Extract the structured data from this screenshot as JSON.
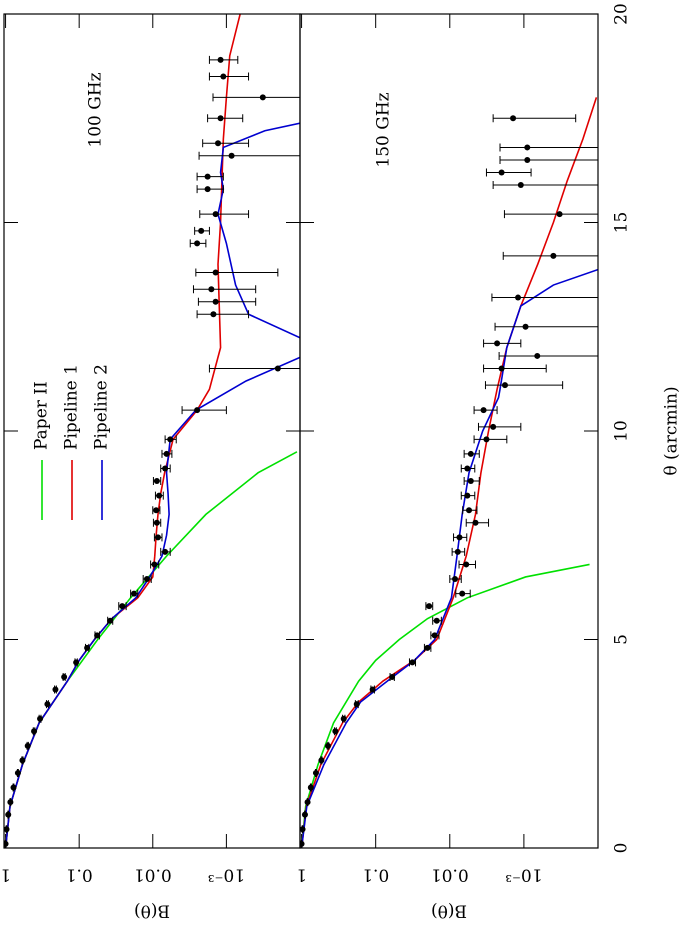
{
  "chart_data": [
    {
      "type": "line",
      "annotation": "100 GHz",
      "ylabel": "B(θ)",
      "log_y": true,
      "legend": "upper center",
      "xlim": [
        0,
        20
      ],
      "ylim": [
        0.0001,
        1.05
      ],
      "yticks": [
        1,
        0.1,
        0.01,
        {
          "value": 0.001,
          "label": "10⁻³"
        }
      ],
      "series": [
        {
          "name": "Paper II",
          "color": "#00e000",
          "x": [
            0,
            1,
            2,
            3,
            4,
            5,
            6,
            7,
            8,
            9,
            9.5
          ],
          "values": [
            1,
            0.87,
            0.59,
            0.35,
            0.145,
            0.056,
            0.02,
            0.0065,
            0.0019,
            0.00037,
            0.00011
          ]
        },
        {
          "name": "Pipeline 1",
          "color": "#e00000",
          "x": [
            0,
            1,
            2,
            3,
            4,
            4.5,
            5,
            5.5,
            6,
            6.5,
            7,
            7.5,
            8,
            8.5,
            9,
            9.8,
            10.5,
            11,
            12,
            13,
            14,
            15,
            16,
            17,
            18,
            19,
            20
          ],
          "values": [
            1,
            0.87,
            0.59,
            0.35,
            0.145,
            0.1,
            0.062,
            0.036,
            0.016,
            0.01,
            0.0094,
            0.009,
            0.0085,
            0.0078,
            0.0069,
            0.0053,
            0.0025,
            0.0017,
            0.0012,
            0.00125,
            0.0013,
            0.0012,
            0.00115,
            0.0011,
            0.001,
            0.0009,
            0.00065
          ]
        },
        {
          "name": "Pipeline 2",
          "color": "#0000d0",
          "x": [
            0,
            1,
            2,
            3,
            4,
            4.5,
            5,
            5.5,
            6,
            6.5,
            7,
            7.5,
            8,
            8.5,
            9,
            9.8,
            10.5,
            11.2,
            11.8,
            12.2,
            12.8,
            13.5,
            14.5,
            15.2,
            15.8,
            16.2,
            16.8,
            17.2,
            17.4
          ],
          "values": [
            1,
            0.87,
            0.59,
            0.35,
            0.145,
            0.1,
            0.062,
            0.036,
            0.017,
            0.011,
            0.0075,
            0.0065,
            0.006,
            0.0062,
            0.0065,
            0.0058,
            0.0026,
            0.00054,
            9e-05,
            9e-05,
            0.0005,
            0.00075,
            0.001,
            0.0013,
            0.0011,
            0.0012,
            0.0011,
            0.0003,
            9e-05
          ]
        }
      ],
      "points": {
        "x": [
          0.1,
          0.45,
          0.8,
          1.1,
          1.45,
          1.8,
          2.1,
          2.45,
          2.8,
          3.1,
          3.45,
          3.8,
          4.1,
          4.45,
          4.8,
          5.1,
          5.45,
          5.8,
          6.1,
          6.45,
          6.8,
          7.1,
          7.45,
          7.8,
          8.1,
          8.45,
          8.8,
          9.1,
          9.45,
          9.8,
          10.5,
          11.5,
          12.8,
          13.1,
          13.4,
          13.8,
          14.5,
          14.8,
          15.2,
          15.8,
          16.1,
          16.6,
          16.9,
          17.5,
          18.0,
          18.5,
          18.9
        ],
        "values": [
          1,
          0.97,
          0.92,
          0.86,
          0.78,
          0.68,
          0.59,
          0.5,
          0.41,
          0.34,
          0.27,
          0.21,
          0.16,
          0.11,
          0.078,
          0.057,
          0.038,
          0.026,
          0.018,
          0.012,
          0.0095,
          0.0068,
          0.0085,
          0.0088,
          0.009,
          0.0082,
          0.0088,
          0.0068,
          0.0065,
          0.0058,
          0.0025,
          0.0002,
          0.0015,
          0.0014,
          0.0016,
          0.0014,
          0.0025,
          0.0022,
          0.0014,
          0.0018,
          0.0018,
          0.00085,
          0.0013,
          0.0012,
          0.00032,
          0.0011,
          0.0012
        ],
        "errors": [
          0.01,
          0.01,
          0.01,
          0.01,
          0.01,
          0.01,
          0.01,
          0.01,
          0.01,
          0.01,
          0.008,
          0.006,
          0.005,
          0.004,
          0.004,
          0.004,
          0.003,
          0.003,
          0.002,
          0.0015,
          0.0012,
          0.001,
          0.001,
          0.001,
          0.001,
          0.001,
          0.001,
          0.001,
          0.001,
          0.001,
          0.0015,
          0.0015,
          0.001,
          0.001,
          0.0012,
          0.0012,
          0.0006,
          0.0005,
          0.0009,
          0.0007,
          0.0007,
          0.0015,
          0.0008,
          0.0006,
          0.0012,
          0.0006,
          0.0005
        ]
      }
    },
    {
      "type": "line",
      "annotation": "150 GHz",
      "ylabel": "B(θ)",
      "xlabel": "θ (arcmin)",
      "log_y": true,
      "xlim": [
        0,
        20
      ],
      "ylim": [
        0.0001,
        1.05
      ],
      "xticks": [
        0,
        5,
        10,
        15,
        20
      ],
      "yticks": [
        1,
        0.1,
        0.01,
        {
          "value": 0.001,
          "label": "10⁻³"
        }
      ],
      "series": [
        {
          "name": "Paper II",
          "color": "#00e000",
          "x": [
            0,
            1,
            2,
            3,
            4,
            4.5,
            5,
            5.5,
            6,
            6.5,
            6.8
          ],
          "values": [
            1,
            0.88,
            0.6,
            0.37,
            0.17,
            0.1,
            0.048,
            0.02,
            0.0058,
            0.00095,
            0.00013
          ]
        },
        {
          "name": "Pipeline 1",
          "color": "#e00000",
          "x": [
            0,
            1,
            2,
            3,
            3.5,
            4,
            4.5,
            5,
            6,
            7,
            8,
            9,
            10,
            11,
            12,
            13,
            14,
            15,
            16,
            17,
            18
          ],
          "values": [
            1,
            0.86,
            0.55,
            0.28,
            0.17,
            0.08,
            0.03,
            0.015,
            0.009,
            0.006,
            0.0045,
            0.0038,
            0.003,
            0.0023,
            0.0017,
            0.0011,
            0.00065,
            0.0004,
            0.00026,
            0.00016,
            0.000105
          ]
        },
        {
          "name": "Pipeline 2",
          "color": "#0000d0",
          "x": [
            0,
            1,
            2,
            3,
            3.5,
            4,
            4.5,
            5,
            6,
            7,
            8,
            9,
            10,
            10.8,
            11,
            12,
            13,
            13.5,
            13.9
          ],
          "values": [
            1,
            0.85,
            0.5,
            0.25,
            0.16,
            0.07,
            0.03,
            0.016,
            0.0095,
            0.008,
            0.0068,
            0.0055,
            0.0036,
            0.0022,
            0.0021,
            0.0017,
            0.0011,
            0.0004,
            9e-05
          ]
        }
      ],
      "points": {
        "x": [
          0.1,
          0.45,
          0.8,
          1.1,
          1.45,
          1.8,
          2.1,
          2.45,
          2.8,
          3.1,
          3.45,
          3.8,
          4.1,
          4.45,
          4.8,
          5.1,
          5.45,
          5.8,
          6.1,
          6.45,
          6.8,
          7.1,
          7.45,
          7.8,
          8.1,
          8.45,
          8.8,
          9.1,
          9.45,
          9.8,
          10.1,
          10.5,
          11.1,
          11.5,
          11.8,
          12.1,
          12.5,
          13.2,
          14.2,
          15.2,
          15.9,
          16.2,
          16.5,
          16.8,
          17.5
        ],
        "values": [
          1,
          0.97,
          0.9,
          0.83,
          0.75,
          0.64,
          0.54,
          0.44,
          0.35,
          0.27,
          0.18,
          0.11,
          0.06,
          0.032,
          0.02,
          0.016,
          0.015,
          0.019,
          0.0068,
          0.0085,
          0.006,
          0.0078,
          0.0074,
          0.0045,
          0.0055,
          0.0058,
          0.0052,
          0.0058,
          0.0052,
          0.0032,
          0.0026,
          0.0035,
          0.0018,
          0.002,
          0.00066,
          0.0023,
          0.00095,
          0.0012,
          0.0004,
          0.00033,
          0.0011,
          0.002,
          0.0009,
          0.0009,
          0.0014
        ],
        "errors": [
          0.01,
          0.01,
          0.01,
          0.01,
          0.01,
          0.01,
          0.01,
          0.01,
          0.01,
          0.01,
          0.008,
          0.006,
          0.004,
          0.003,
          0.002,
          0.002,
          0.002,
          0.002,
          0.0015,
          0.0015,
          0.0015,
          0.0015,
          0.0015,
          0.0015,
          0.0012,
          0.0012,
          0.0012,
          0.0012,
          0.0012,
          0.0015,
          0.0015,
          0.0012,
          0.0015,
          0.0015,
          0.0015,
          0.0012,
          0.0015,
          0.0015,
          0.0015,
          0.0015,
          0.0015,
          0.0012,
          0.0012,
          0.0012,
          0.0012
        ]
      }
    }
  ]
}
